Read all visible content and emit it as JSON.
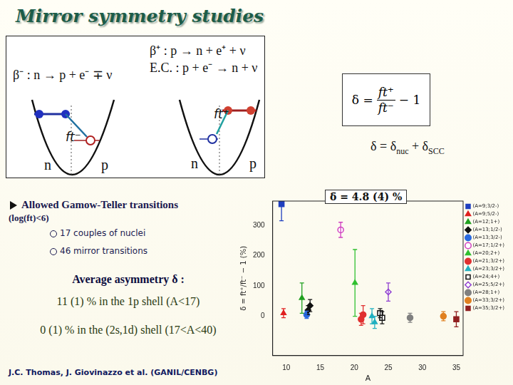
{
  "title": "Mirror symmetry studies",
  "decay_box": {
    "beta_minus": "β⁻ : n → p + e⁻ ∓ ν",
    "beta_plus": "β⁺ : p → n + e⁺ + ν",
    "ec": "E.C. : p + e⁻ → n + ν",
    "ft_minus": "ft⁻",
    "ft_plus": "ft⁺",
    "left_well": [
      "n",
      "p"
    ],
    "right_well": [
      "n",
      "p"
    ]
  },
  "formula": {
    "lhs": "δ =",
    "numerator": "ft⁺",
    "denominator": "ft⁻",
    "rhs": "− 1"
  },
  "decomposition": [
    "δ = δ",
    "nuc",
    " + δ",
    "SCC"
  ],
  "bullets": {
    "main": "Allowed Gamow-Teller transitions",
    "condition": "(log(ft)<6)",
    "items": [
      "17 couples of nuclei",
      "46 mirror transitions"
    ],
    "average": "Average asymmetry δ :",
    "results": [
      "11 (1) % in the 1p shell (A<17)",
      "0 (1) % in the (2s,1d) shell (17<A<40)"
    ]
  },
  "mean": "δ̄ = 4.8 (4) %",
  "credit": "J.C. Thomas, J. Giovinazzo et al. (GANIL/CENBG)",
  "chart_data": {
    "type": "scatter",
    "x_label": "A",
    "y_label": "δ = ft⁺/ft⁻ − 1 (%)",
    "xlim": [
      8,
      36
    ],
    "xticks": [
      10,
      15,
      20,
      25,
      30,
      35
    ],
    "ylim": [
      -130,
      380
    ],
    "yticks": [
      0,
      100,
      200,
      300
    ],
    "grid": false,
    "legend": "right",
    "series": [
      {
        "name": "(A=9;3/2-)",
        "color": "#1f3fbf",
        "marker": "square",
        "x": [
          9.3
        ],
        "values": [
          370
        ],
        "errors": [
          55
        ]
      },
      {
        "name": "(A=9;5/2-)",
        "color": "#e02020",
        "marker": "triangle",
        "x": [
          9.6
        ],
        "values": [
          10
        ],
        "errors": [
          15
        ]
      },
      {
        "name": "(A=12;1+)",
        "color": "#20a020",
        "marker": "triangle",
        "x": [
          12.3
        ],
        "values": [
          60
        ],
        "errors": [
          50
        ]
      },
      {
        "name": "(A=13;1/2-)",
        "color": "#111111",
        "marker": "diamond",
        "x": [
          13.2,
          13.5
        ],
        "values": [
          20,
          35
        ],
        "errors": [
          15,
          20
        ]
      },
      {
        "name": "(A=13;3/2-)",
        "color": "#2a6ae0",
        "marker": "circle",
        "x": [
          13.0
        ],
        "values": [
          5
        ],
        "errors": [
          12
        ]
      },
      {
        "name": "(A=17;1/2+)",
        "color": "#d040c0",
        "marker": "open circle",
        "x": [
          18.0
        ],
        "values": [
          285
        ],
        "errors": [
          25
        ]
      },
      {
        "name": "(A=20;2+)",
        "color": "#30c030",
        "marker": "triangle",
        "x": [
          20.1
        ],
        "values": [
          110
        ],
        "errors": [
          110
        ]
      },
      {
        "name": "(A=21;3/2+)",
        "color": "#e03030",
        "marker": "circle",
        "x": [
          21.0,
          21.3
        ],
        "values": [
          -10,
          5
        ],
        "errors": [
          20,
          30
        ]
      },
      {
        "name": "(A=23;3/2+)",
        "color": "#20b0c0",
        "marker": "triangle",
        "x": [
          22.6,
          23.0
        ],
        "values": [
          0,
          -20
        ],
        "errors": [
          25,
          20
        ]
      },
      {
        "name": "(A=24;4+)",
        "color": "#111111",
        "marker": "open square",
        "x": [
          23.8,
          24.1
        ],
        "values": [
          10,
          -5
        ],
        "errors": [
          15,
          20
        ]
      },
      {
        "name": "(A=25;5/2+)",
        "color": "#9040d0",
        "marker": "open diamond",
        "x": [
          25.0
        ],
        "values": [
          80
        ],
        "errors": [
          30
        ]
      },
      {
        "name": "(A=28;1+)",
        "color": "#808080",
        "marker": "circle",
        "x": [
          28.2
        ],
        "values": [
          -5
        ],
        "errors": [
          15
        ]
      },
      {
        "name": "(A=33;3/2+)",
        "color": "#e08020",
        "marker": "circle",
        "x": [
          33.1
        ],
        "values": [
          0
        ],
        "errors": [
          15
        ]
      },
      {
        "name": "(A=35;3/2+)",
        "color": "#902020",
        "marker": "square",
        "x": [
          35.0
        ],
        "values": [
          -10
        ],
        "errors": [
          25
        ]
      }
    ]
  }
}
